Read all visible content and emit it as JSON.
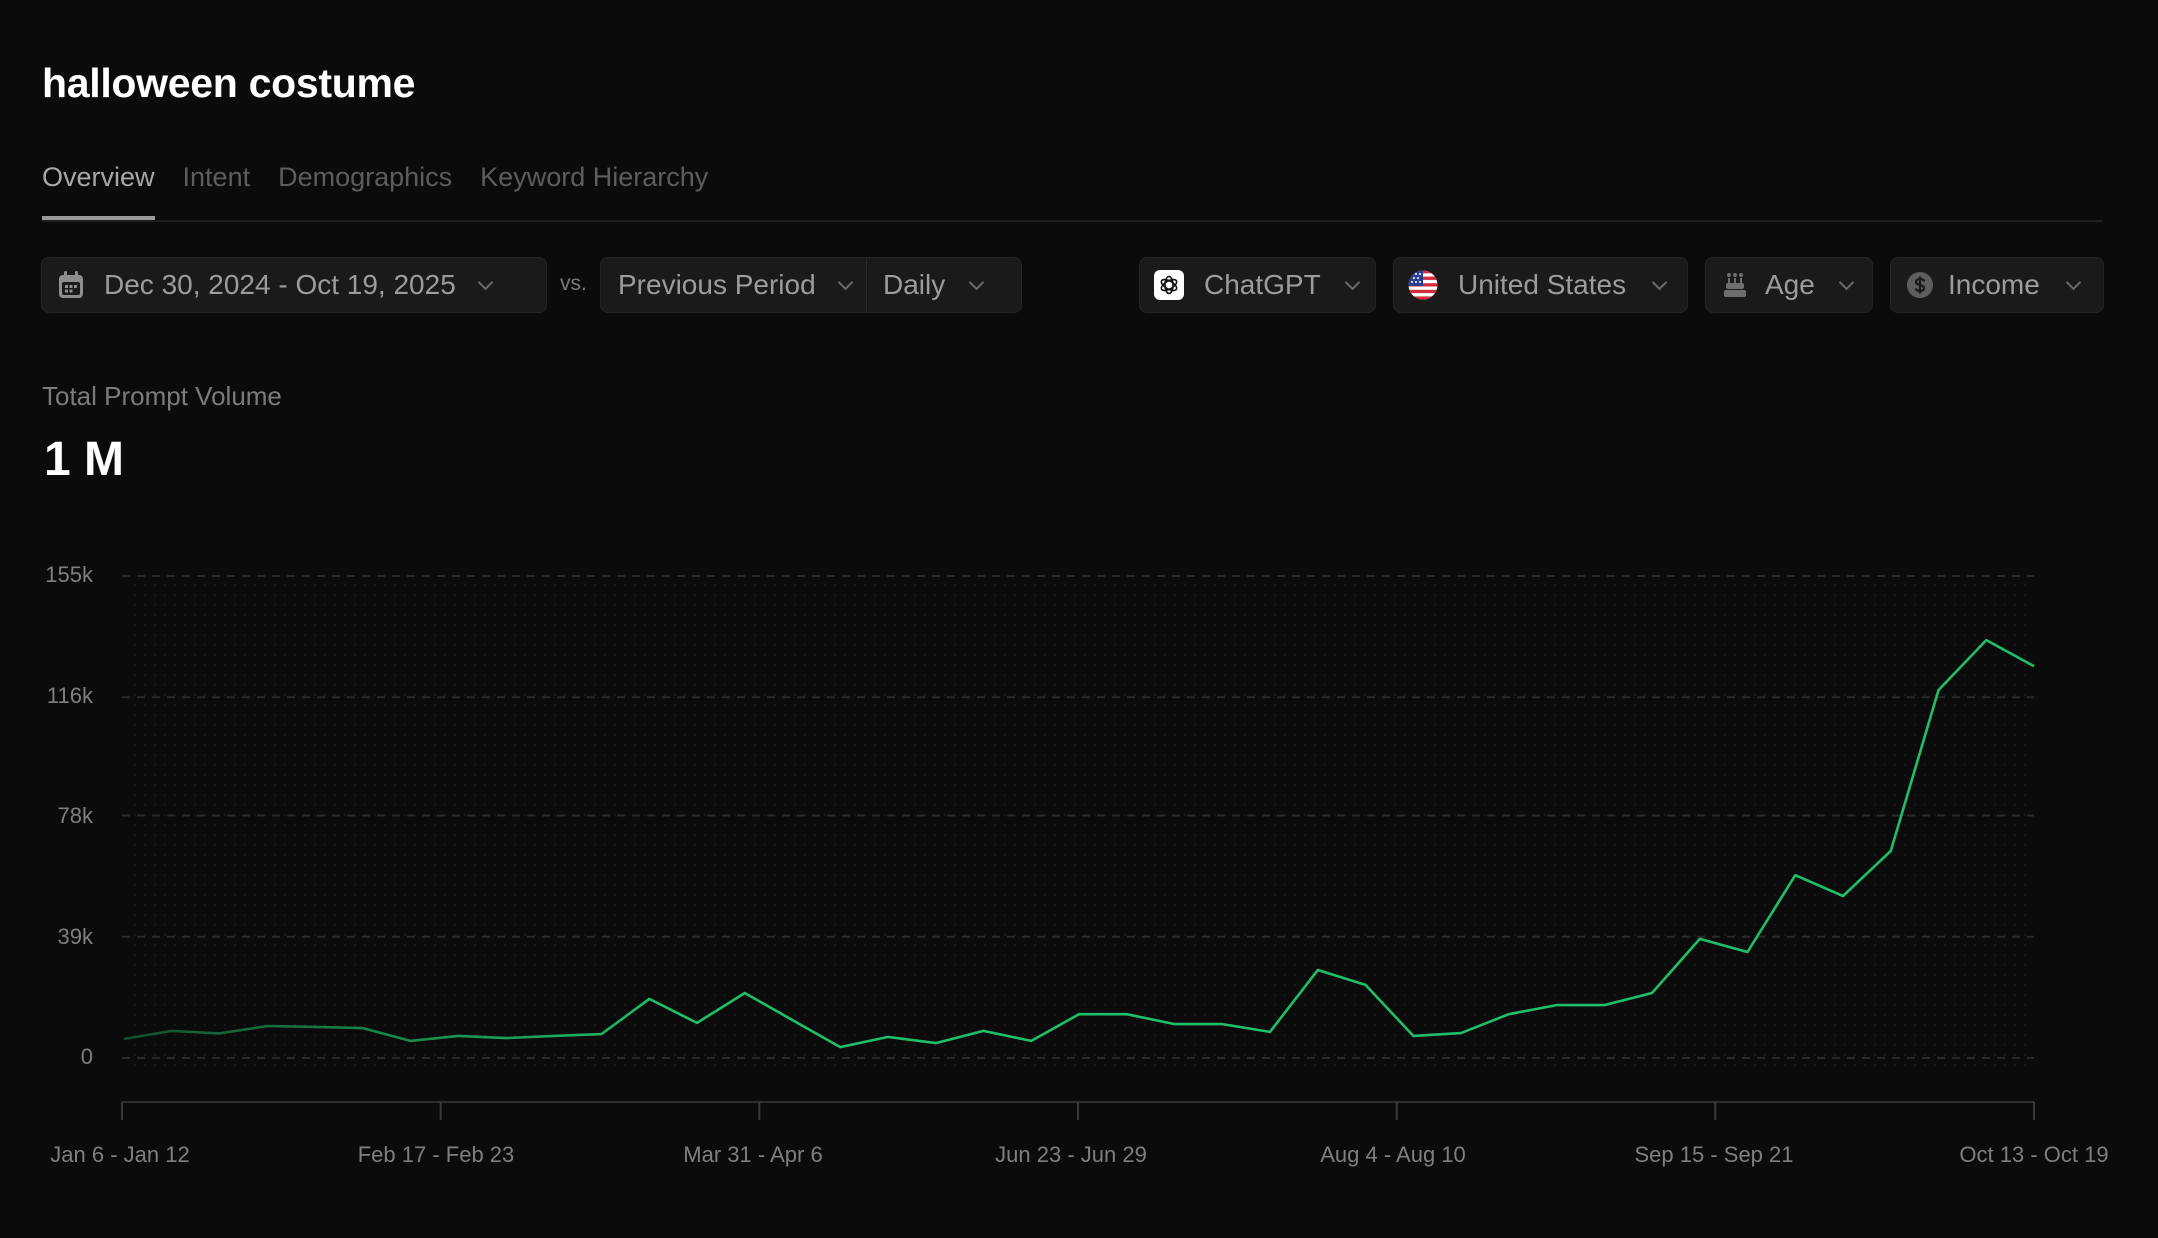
{
  "page": {
    "title": "halloween costume"
  },
  "tabs": [
    {
      "label": "Overview",
      "active": true
    },
    {
      "label": "Intent",
      "active": false
    },
    {
      "label": "Demographics",
      "active": false
    },
    {
      "label": "Keyword Hierarchy",
      "active": false
    }
  ],
  "filters": {
    "date_range": {
      "icon": "calendar-icon",
      "value": "Dec 30, 2024 - Oct 19, 2025"
    },
    "vs_label": "vs.",
    "compare": {
      "value": "Previous Period"
    },
    "granularity": {
      "value": "Daily"
    },
    "platform": {
      "icon": "chatgpt-logo-icon",
      "value": "ChatGPT"
    },
    "country": {
      "icon": "us-flag-icon",
      "value": "United States"
    },
    "age": {
      "icon": "cake-icon",
      "value": "Age"
    },
    "income": {
      "icon": "dollar-circle-icon",
      "value": "Income"
    }
  },
  "metric": {
    "label": "Total Prompt Volume",
    "value": "1 M"
  },
  "colors": {
    "background": "#0b0b0b",
    "line": "#1fbf6a",
    "line_faded": "#135c36",
    "grid": "#2a2a2a",
    "axis_text": "#7f7f7f"
  },
  "chart_data": {
    "type": "line",
    "title": "Total Prompt Volume",
    "xlabel": "",
    "ylabel": "",
    "ylim": [
      0,
      155000
    ],
    "yticks": [
      "0",
      "39k",
      "78k",
      "116k",
      "155k"
    ],
    "ytick_values": [
      0,
      39000,
      78000,
      116000,
      155000
    ],
    "xtick_labels": [
      "Jan 6 - Jan 12",
      "Feb 17 - Feb 23",
      "Mar 31 - Apr 6",
      "Jun 23 - Jun 29",
      "Aug 4 - Aug 10",
      "Sep 15 - Sep 21",
      "Oct 13 - Oct 19"
    ],
    "grid": true,
    "legend": null,
    "series": [
      {
        "name": "Prompt Volume",
        "values": [
          6100,
          8700,
          7900,
          10300,
          10000,
          9600,
          5500,
          7100,
          6400,
          7100,
          7700,
          19000,
          11300,
          20900,
          12200,
          3500,
          6800,
          4800,
          8700,
          5500,
          14100,
          14100,
          10900,
          10900,
          8400,
          28300,
          23500,
          7100,
          8000,
          14100,
          17000,
          17000,
          20900,
          38300,
          34100,
          58800,
          52100,
          66600,
          118300,
          134400,
          126000
        ]
      }
    ]
  }
}
